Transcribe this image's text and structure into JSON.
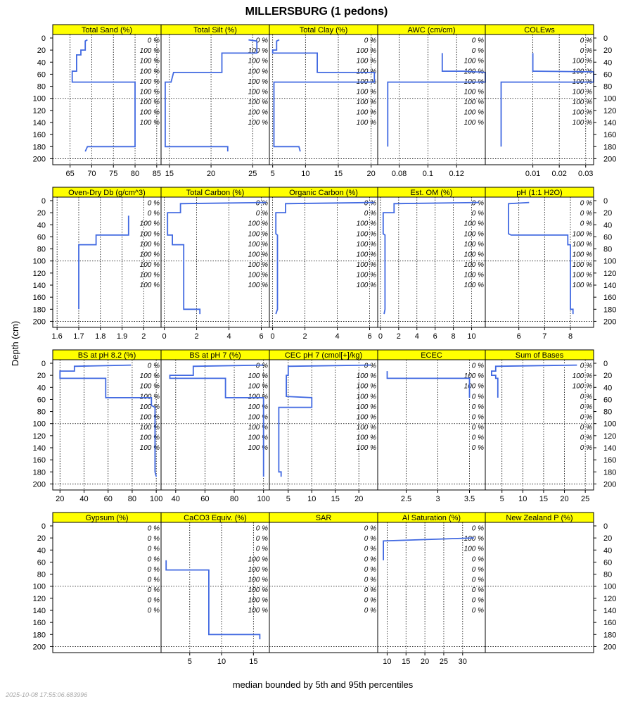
{
  "chart_data": {
    "type": "line",
    "title": "MILLERSBURG (1 pedons)",
    "ylabel": "Depth (cm)",
    "xlabel": "median bounded by 5th and 95th percentiles",
    "timestamp": "2025-10-08 17:55:06.683996",
    "depth_ticks": [
      0,
      20,
      40,
      60,
      80,
      100,
      120,
      140,
      160,
      180,
      200
    ],
    "depth_range": [
      0,
      210
    ],
    "colors": {
      "strip": "#ffff00",
      "line": "#4169e1",
      "grid": "#000000"
    },
    "panels": [
      {
        "name": "Total Sand (%)",
        "xlim": [
          61,
          86
        ],
        "xticks": [
          65,
          70,
          75,
          80,
          85
        ],
        "profile": [
          [
            69,
            3
          ],
          [
            68.5,
            5
          ],
          [
            68.5,
            20
          ],
          [
            67.5,
            20
          ],
          [
            67.5,
            28
          ],
          [
            66.5,
            28
          ],
          [
            66.5,
            55
          ],
          [
            65.5,
            55
          ],
          [
            65.5,
            73
          ],
          [
            80,
            73
          ],
          [
            80,
            180
          ],
          [
            69,
            180
          ],
          [
            68.5,
            188
          ]
        ],
        "pct": [
          "0 %",
          "100 %",
          "100 %",
          "100 %",
          "100 %",
          "100 %",
          "100 %",
          "100 %",
          "100 %"
        ]
      },
      {
        "name": "Total Silt (%)",
        "xlim": [
          14,
          27
        ],
        "xticks": [
          15,
          20,
          25
        ],
        "profile": [
          [
            24.5,
            3
          ],
          [
            25.5,
            5
          ],
          [
            25.5,
            20
          ],
          [
            25.5,
            25
          ],
          [
            21.3,
            25
          ],
          [
            21.3,
            57
          ],
          [
            15.5,
            57
          ],
          [
            15.2,
            73
          ],
          [
            14.5,
            73
          ],
          [
            14.5,
            180
          ],
          [
            22,
            180
          ],
          [
            22,
            188
          ]
        ],
        "pct": [
          "0 %",
          "100 %",
          "100 %",
          "100 %",
          "100 %",
          "100 %",
          "100 %",
          "100 %",
          "100 %"
        ]
      },
      {
        "name": "Total Clay (%)",
        "xlim": [
          4.5,
          21
        ],
        "xticks": [
          5,
          10,
          15,
          20
        ],
        "profile": [
          [
            6,
            3
          ],
          [
            5.6,
            5
          ],
          [
            5.6,
            20
          ],
          [
            5,
            20
          ],
          [
            5,
            25
          ],
          [
            11.8,
            25
          ],
          [
            11.8,
            57
          ],
          [
            20.5,
            57
          ],
          [
            20.5,
            73
          ],
          [
            5.2,
            73
          ],
          [
            5.2,
            180
          ],
          [
            9,
            180
          ],
          [
            9.2,
            188
          ]
        ],
        "pct": [
          "0 %",
          "100 %",
          "100 %",
          "100 %",
          "100 %",
          "100 %",
          "100 %",
          "100 %",
          "100 %"
        ]
      },
      {
        "name": "AWC (cm/cm)",
        "xlim": [
          0.065,
          0.14
        ],
        "xticks": [
          0.08,
          0.1,
          0.12
        ],
        "profile": [
          [
            0.11,
            25
          ],
          [
            0.11,
            55
          ],
          [
            0.125,
            55
          ],
          [
            0.14,
            57
          ],
          [
            0.14,
            73
          ],
          [
            0.072,
            73
          ],
          [
            0.072,
            180
          ]
        ],
        "pct": [
          "0 %",
          "0 %",
          "100 %",
          "100 %",
          "100 %",
          "100 %",
          "100 %",
          "100 %",
          "100 %"
        ]
      },
      {
        "name": "COLEws",
        "xlim": [
          -0.008,
          0.033
        ],
        "xticks": [
          0.01,
          0.02,
          0.03
        ],
        "profile": [
          [
            0.01,
            25
          ],
          [
            0.01,
            55
          ],
          [
            0.033,
            56
          ],
          [
            0.033,
            73
          ],
          [
            -0.002,
            73
          ],
          [
            -0.002,
            180
          ]
        ],
        "pct": [
          "0 %",
          "0 %",
          "100 %",
          "100 %",
          "100 %",
          "100 %",
          "100 %",
          "100 %",
          "100 %"
        ]
      },
      {
        "name": "Oven-Dry Db (g/cm^3)",
        "xlim": [
          1.58,
          2.08
        ],
        "xticks": [
          1.6,
          1.7,
          1.8,
          1.9,
          2.0
        ],
        "profile": [
          [
            1.93,
            25
          ],
          [
            1.93,
            57
          ],
          [
            1.78,
            57
          ],
          [
            1.78,
            73
          ],
          [
            1.7,
            73
          ],
          [
            1.7,
            180
          ]
        ],
        "pct": [
          "0 %",
          "0 %",
          "100 %",
          "100 %",
          "100 %",
          "100 %",
          "100 %",
          "100 %",
          "100 %"
        ]
      },
      {
        "name": "Total Carbon (%)",
        "xlim": [
          -0.2,
          6.5
        ],
        "xticks": [
          0,
          2,
          4,
          6
        ],
        "profile": [
          [
            6.3,
            3
          ],
          [
            1,
            5
          ],
          [
            1,
            20
          ],
          [
            0.2,
            20
          ],
          [
            0.2,
            55
          ],
          [
            0.2,
            57
          ],
          [
            0.5,
            57
          ],
          [
            0.5,
            73
          ],
          [
            1.2,
            73
          ],
          [
            1.2,
            180
          ],
          [
            2.2,
            180
          ],
          [
            2.2,
            188
          ]
        ],
        "pct": [
          "0 %",
          "0 %",
          "100 %",
          "100 %",
          "100 %",
          "100 %",
          "100 %",
          "100 %",
          "100 %"
        ]
      },
      {
        "name": "Organic Carbon (%)",
        "xlim": [
          -0.2,
          6.5
        ],
        "xticks": [
          0,
          2,
          4,
          6
        ],
        "profile": [
          [
            6.3,
            3
          ],
          [
            0.8,
            5
          ],
          [
            0.8,
            20
          ],
          [
            0.2,
            20
          ],
          [
            0.2,
            55
          ],
          [
            0.3,
            57
          ],
          [
            0.3,
            73
          ],
          [
            0.3,
            180
          ],
          [
            0.2,
            188
          ]
        ],
        "pct": [
          "0 %",
          "0 %",
          "100 %",
          "100 %",
          "100 %",
          "100 %",
          "100 %",
          "100 %",
          "100 %"
        ]
      },
      {
        "name": "Est. OM (%)",
        "xlim": [
          -0.3,
          11.5
        ],
        "xticks": [
          0,
          2,
          4,
          6,
          8,
          10
        ],
        "profile": [
          [
            10.8,
            3
          ],
          [
            1.5,
            5
          ],
          [
            1.5,
            20
          ],
          [
            0.3,
            20
          ],
          [
            0.3,
            55
          ],
          [
            0.5,
            57
          ],
          [
            0.5,
            73
          ],
          [
            0.5,
            180
          ],
          [
            0.4,
            188
          ]
        ],
        "pct": [
          "0 %",
          "0 %",
          "100 %",
          "100 %",
          "100 %",
          "100 %",
          "100 %",
          "100 %",
          "100 %"
        ]
      },
      {
        "name": "pH (1:1 H2O)",
        "xlim": [
          4.7,
          8.9
        ],
        "xticks": [
          6,
          7,
          8
        ],
        "profile": [
          [
            6.4,
            3
          ],
          [
            5.6,
            5
          ],
          [
            5.6,
            55
          ],
          [
            5.7,
            57
          ],
          [
            7.9,
            57
          ],
          [
            7.9,
            73
          ],
          [
            8,
            73
          ],
          [
            8,
            180
          ],
          [
            8.1,
            180
          ],
          [
            8.1,
            188
          ]
        ],
        "pct": [
          "0 %",
          "0 %",
          "0 %",
          "100 %",
          "100 %",
          "100 %",
          "100 %",
          "100 %",
          "100 %"
        ]
      },
      {
        "name": "BS at pH 8.2 (%)",
        "xlim": [
          14,
          104
        ],
        "xticks": [
          20,
          40,
          60,
          80,
          100
        ],
        "profile": [
          [
            79,
            3
          ],
          [
            32,
            5
          ],
          [
            32,
            13
          ],
          [
            20,
            13
          ],
          [
            20,
            25
          ],
          [
            58,
            25
          ],
          [
            58,
            57
          ],
          [
            96,
            57
          ],
          [
            96,
            70
          ],
          [
            99,
            73
          ],
          [
            99,
            180
          ],
          [
            100,
            188
          ]
        ],
        "pct": [
          "0 %",
          "100 %",
          "100 %",
          "100 %",
          "100 %",
          "100 %",
          "100 %",
          "100 %",
          "100 %"
        ]
      },
      {
        "name": "BS at pH 7 (%)",
        "xlim": [
          30,
          104
        ],
        "xticks": [
          40,
          60,
          80,
          100
        ],
        "profile": [
          [
            100,
            3
          ],
          [
            52,
            5
          ],
          [
            52,
            20
          ],
          [
            36,
            20
          ],
          [
            36,
            25
          ],
          [
            74,
            25
          ],
          [
            74,
            57
          ],
          [
            100,
            57
          ],
          [
            100,
            73
          ],
          [
            100,
            180
          ],
          [
            100,
            188
          ]
        ],
        "pct": [
          "0 %",
          "100 %",
          "100 %",
          "100 %",
          "100 %",
          "100 %",
          "100 %",
          "100 %",
          "100 %"
        ]
      },
      {
        "name": "CEC pH 7 (cmol[+]/kg)",
        "xlim": [
          1,
          24
        ],
        "xticks": [
          5,
          10,
          15,
          20
        ],
        "profile": [
          [
            22.5,
            3
          ],
          [
            5,
            5
          ],
          [
            5,
            20
          ],
          [
            4.6,
            20
          ],
          [
            4.6,
            55
          ],
          [
            10,
            57
          ],
          [
            10,
            73
          ],
          [
            3,
            73
          ],
          [
            3,
            180
          ],
          [
            3.5,
            180
          ],
          [
            3.5,
            188
          ]
        ],
        "pct": [
          "0 %",
          "100 %",
          "100 %",
          "100 %",
          "100 %",
          "100 %",
          "100 %",
          "100 %",
          "100 %"
        ]
      },
      {
        "name": "ECEC",
        "xlim": [
          2.05,
          3.75
        ],
        "xticks": [
          2.5,
          3.0,
          3.5
        ],
        "profile": [
          [
            2.2,
            13
          ],
          [
            2.2,
            25
          ],
          [
            3.5,
            25
          ],
          [
            3.5,
            57
          ]
        ],
        "pct": [
          "0 %",
          "100 %",
          "100 %",
          "0 %",
          "0 %",
          "0 %",
          "0 %",
          "0 %",
          "0 %"
        ]
      },
      {
        "name": "Sum of Bases",
        "xlim": [
          1,
          27
        ],
        "xticks": [
          5,
          10,
          15,
          20,
          25
        ],
        "profile": [
          [
            23,
            3
          ],
          [
            3.5,
            5
          ],
          [
            3.5,
            13
          ],
          [
            2.5,
            13
          ],
          [
            2.5,
            20
          ],
          [
            3.5,
            20
          ],
          [
            3.5,
            25
          ],
          [
            4,
            25
          ],
          [
            4,
            57
          ]
        ],
        "pct": [
          "0 %",
          "100 %",
          "100 %",
          "0 %",
          "0 %",
          "0 %",
          "0 %",
          "0 %",
          "0 %"
        ]
      },
      {
        "name": "Gypsum (%)",
        "xlim": [
          0,
          1
        ],
        "xticks": [],
        "profile": [],
        "pct": [
          "0 %",
          "0 %",
          "0 %",
          "0 %",
          "0 %",
          "0 %",
          "0 %",
          "0 %",
          "0 %"
        ]
      },
      {
        "name": "CaCO3 Equiv. (%)",
        "xlim": [
          0.5,
          17.5
        ],
        "xticks": [
          5,
          10,
          15
        ],
        "profile": [
          [
            1.3,
            57
          ],
          [
            1.3,
            73
          ],
          [
            8,
            73
          ],
          [
            8,
            180
          ],
          [
            16,
            180
          ],
          [
            16,
            188
          ]
        ],
        "pct": [
          "0 %",
          "0 %",
          "0 %",
          "100 %",
          "100 %",
          "100 %",
          "100 %",
          "100 %",
          "100 %"
        ]
      },
      {
        "name": "SAR",
        "xlim": [
          0,
          1
        ],
        "xticks": [],
        "profile": [],
        "pct": [
          "0 %",
          "0 %",
          "0 %",
          "0 %",
          "0 %",
          "0 %",
          "0 %",
          "0 %",
          "0 %"
        ]
      },
      {
        "name": "Al Saturation (%)",
        "xlim": [
          7.5,
          36
        ],
        "xticks": [
          10,
          15,
          20,
          25,
          30
        ],
        "profile": [
          [
            33,
            20
          ],
          [
            9,
            25
          ],
          [
            9,
            57
          ]
        ],
        "pct": [
          "0 %",
          "100 %",
          "100 %",
          "0 %",
          "0 %",
          "0 %",
          "0 %",
          "0 %",
          "0 %"
        ]
      },
      {
        "name": "New Zealand P (%)",
        "xlim": [
          0,
          1
        ],
        "xticks": [],
        "profile": [],
        "pct": [
          "",
          "",
          "",
          "",
          "",
          "",
          "",
          "",
          ""
        ]
      }
    ]
  }
}
